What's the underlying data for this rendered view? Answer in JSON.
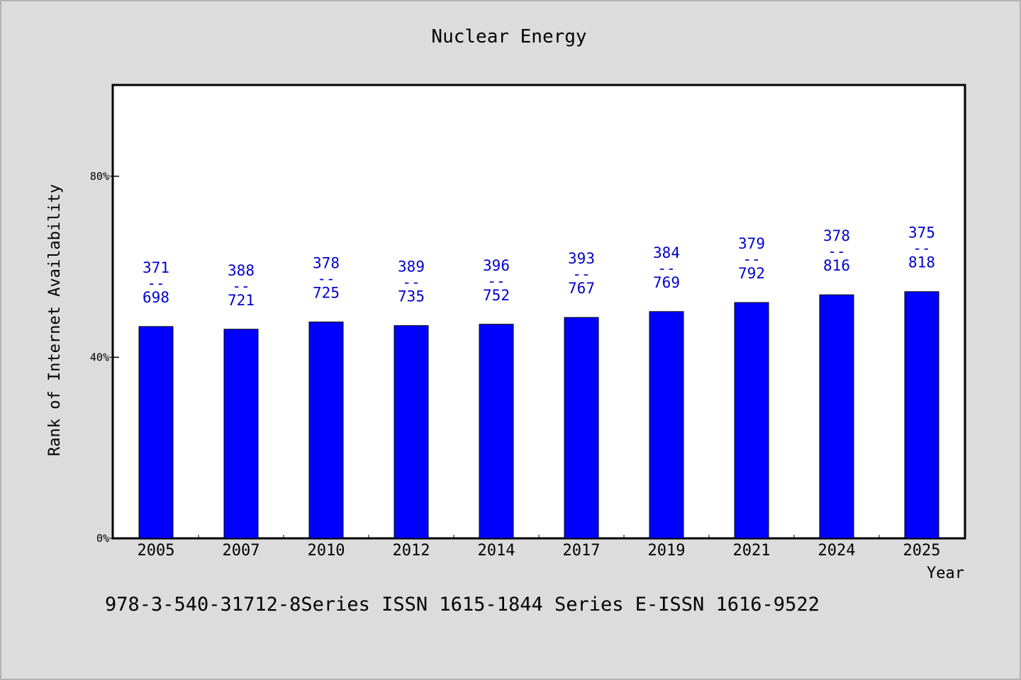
{
  "chart_data": {
    "type": "bar",
    "title": "Nuclear Energy",
    "xlabel": "Year",
    "ylabel": "Rank of Internet Availability",
    "categories": [
      "2005",
      "2007",
      "2010",
      "2012",
      "2014",
      "2017",
      "2019",
      "2021",
      "2024",
      "2025"
    ],
    "values": [
      0.468,
      0.462,
      0.478,
      0.47,
      0.473,
      0.488,
      0.501,
      0.521,
      0.538,
      0.545
    ],
    "labels_top": [
      "371",
      "388",
      "378",
      "389",
      "396",
      "393",
      "384",
      "379",
      "378",
      "375"
    ],
    "labels_bottom": [
      "698",
      "721",
      "725",
      "735",
      "752",
      "767",
      "769",
      "792",
      "816",
      "818"
    ],
    "label_separator": "--",
    "ylim": [
      0,
      1.0
    ],
    "yticks": [
      0,
      0.4,
      0.8
    ],
    "ytick_labels": [
      "0%",
      "40%",
      "80%"
    ],
    "bar_color": "#0000ff",
    "label_color": "#0000cc",
    "grid": false
  },
  "footer": "978-3-540-31712-8Series ISSN 1615-1844 Series E-ISSN 1616-9522"
}
